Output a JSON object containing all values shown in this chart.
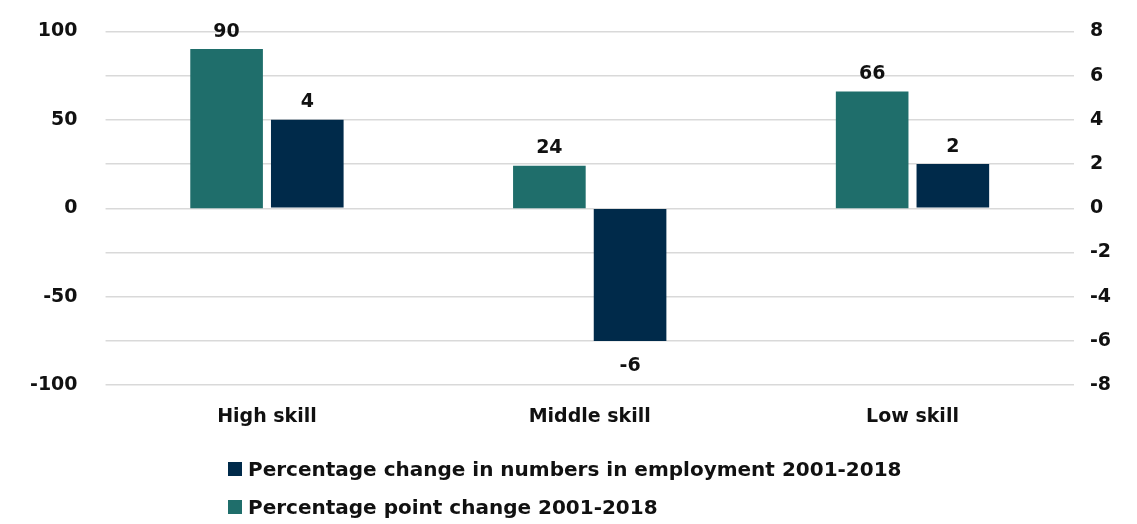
{
  "chart_data": {
    "type": "bar",
    "categories": [
      "High skill",
      "Middle skill",
      "Low skill"
    ],
    "series": [
      {
        "name": "Percentage point change 2001-2018",
        "color": "#1f6e6b",
        "values": [
          90,
          24,
          66
        ]
      },
      {
        "name": "Percentage change in numbers in employment 2001-2018",
        "color": "#002a4a",
        "values": [
          4,
          -6,
          2
        ],
        "axis": "y2"
      }
    ],
    "ylim": [
      -100,
      100
    ],
    "yticks": [
      -100,
      -50,
      0,
      50,
      100
    ],
    "y2lim": [
      -8,
      8
    ],
    "y2ticks": [
      -8,
      -6,
      -4,
      -2,
      0,
      2,
      4,
      6,
      8
    ],
    "grid": true,
    "legend": "bottom",
    "data_labels": true
  }
}
